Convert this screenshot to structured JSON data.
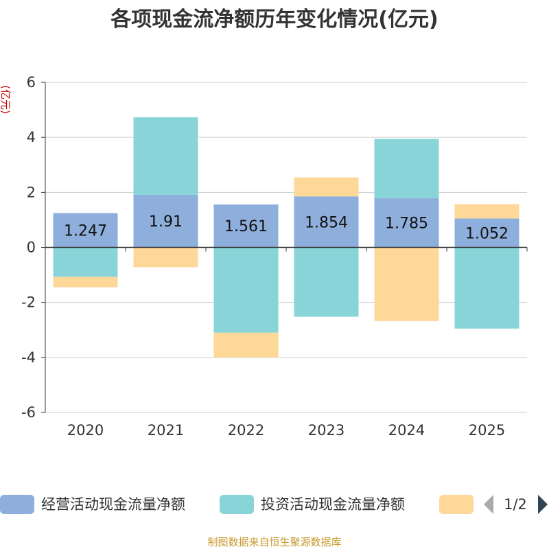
{
  "chart_data": {
    "type": "bar",
    "stacked": true,
    "title": "各项现金流净额历年变化情况(亿元)",
    "ylabel": "(亿元)",
    "xlabel": "",
    "categories": [
      "2020",
      "2021",
      "2022",
      "2023",
      "2024",
      "2025"
    ],
    "ylim": [
      -6,
      6
    ],
    "yticks": [
      6,
      4,
      2,
      0,
      -2,
      -4,
      -6
    ],
    "grid": true,
    "series": [
      {
        "name": "经营活动现金流量净额",
        "color": "#8eaedb",
        "values": [
          1.247,
          1.91,
          1.561,
          1.854,
          1.785,
          1.052
        ],
        "labels": [
          "1.247",
          "1.91",
          "1.561",
          "1.854",
          "1.785",
          "1.052"
        ]
      },
      {
        "name": "投资活动现金流量净额",
        "color": "#88d4d8",
        "values": [
          -1.07,
          2.82,
          -3.1,
          -2.52,
          2.16,
          -2.95
        ]
      },
      {
        "name": "",
        "color": "#fdd899",
        "values": [
          -0.38,
          -0.72,
          -0.9,
          0.69,
          -2.68,
          0.52
        ]
      }
    ],
    "legend_position": "bottom",
    "legend_page": "1/2",
    "source": "制图数据来自恒生聚源数据库"
  }
}
